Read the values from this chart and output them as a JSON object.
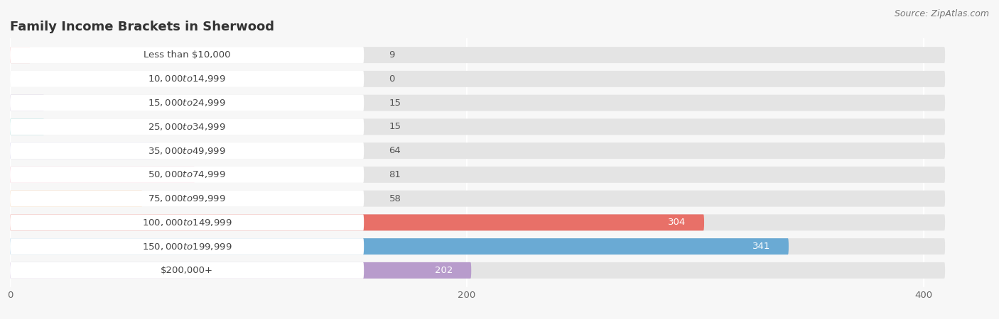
{
  "title": "Family Income Brackets in Sherwood",
  "source": "Source: ZipAtlas.com",
  "categories": [
    "Less than $10,000",
    "$10,000 to $14,999",
    "$15,000 to $24,999",
    "$25,000 to $34,999",
    "$35,000 to $49,999",
    "$50,000 to $74,999",
    "$75,000 to $99,999",
    "$100,000 to $149,999",
    "$150,000 to $199,999",
    "$200,000+"
  ],
  "values": [
    9,
    0,
    15,
    15,
    64,
    81,
    58,
    304,
    341,
    202
  ],
  "bar_colors": [
    "#f4a0a0",
    "#a8c4e0",
    "#c9b8d8",
    "#7dceca",
    "#b8b4e0",
    "#f4a0b8",
    "#f8c89a",
    "#e87068",
    "#6aaad4",
    "#b89ccc"
  ],
  "xlim_data": 420,
  "xticks": [
    0,
    200,
    400
  ],
  "background_color": "#f7f7f7",
  "bar_bg_color": "#e4e4e4",
  "label_box_color": "#ffffff",
  "title_fontsize": 13,
  "label_fontsize": 9.5,
  "value_fontsize": 9.5,
  "bar_height": 0.68,
  "bar_gap": 0.32
}
